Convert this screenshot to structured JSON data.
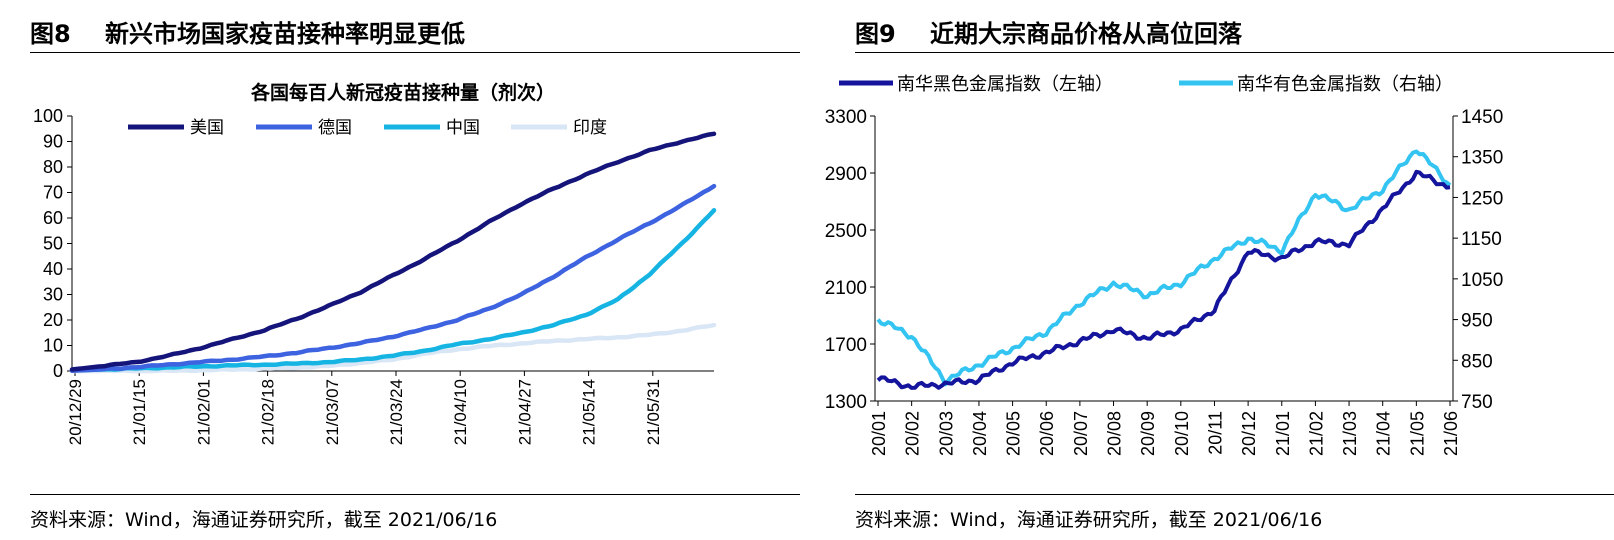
{
  "left_panel": {
    "figure_no": "图8",
    "figure_title": "新兴市场国家疫苗接种率明显更低",
    "source": "资料来源：Wind，海通证券研究所，截至 2021/06/16"
  },
  "right_panel": {
    "figure_no": "图9",
    "figure_title": "近期大宗商品价格从高位回落",
    "source": "资料来源：Wind，海通证券研究所，截至 2021/06/16"
  },
  "colors": {
    "usa": "#14147a",
    "germany": "#3e63e0",
    "china": "#16b4e3",
    "india": "#d9e6f5",
    "nh_black": "#14149c",
    "nh_nonferrous": "#33c4f2"
  },
  "chart_data": [
    {
      "type": "line",
      "title": "各国每百人新冠疫苗接种量（剂次）",
      "xlabel": "",
      "ylabel": "",
      "x_ticks": [
        "20/12/29",
        "21/01/15",
        "21/02/01",
        "21/02/18",
        "21/03/07",
        "21/03/24",
        "21/04/10",
        "21/04/27",
        "21/05/14",
        "21/05/31"
      ],
      "ylim": [
        0,
        100
      ],
      "y_ticks": [
        0,
        10,
        20,
        30,
        40,
        50,
        60,
        70,
        80,
        90,
        100
      ],
      "legend_position": "top",
      "grid": false,
      "x": [
        "20/12/29",
        "21/01/08",
        "21/01/15",
        "21/01/25",
        "21/02/01",
        "21/02/10",
        "21/02/18",
        "21/02/28",
        "21/03/07",
        "21/03/15",
        "21/03/24",
        "21/04/01",
        "21/04/10",
        "21/04/18",
        "21/04/27",
        "21/05/05",
        "21/05/14",
        "21/05/22",
        "21/05/31",
        "21/06/08",
        "21/06/16"
      ],
      "series": [
        {
          "name": "美国",
          "values": [
            0.6,
            2.0,
            3.5,
            6.0,
            9.0,
            12.5,
            16.0,
            20.5,
            25.5,
            31.0,
            37.5,
            44.0,
            51.0,
            58.5,
            65.5,
            71.5,
            77.0,
            82.0,
            86.5,
            90.0,
            93.0
          ]
        },
        {
          "name": "德国",
          "values": [
            0.1,
            0.7,
            1.5,
            2.5,
            3.5,
            4.5,
            5.7,
            7.2,
            9.0,
            11.0,
            13.5,
            16.5,
            20.0,
            24.5,
            30.0,
            37.0,
            44.5,
            51.5,
            58.0,
            65.0,
            72.5
          ]
        },
        {
          "name": "中国",
          "values": [
            0.3,
            0.6,
            1.0,
            1.4,
            1.8,
            2.2,
            2.5,
            2.9,
            3.5,
            4.5,
            6.0,
            8.0,
            10.5,
            12.5,
            15.0,
            18.0,
            22.0,
            28.0,
            38.0,
            50.0,
            63.0
          ]
        },
        {
          "name": "印度",
          "values": [
            0,
            0,
            0,
            0.1,
            0.3,
            0.6,
            0.9,
            1.3,
            2.0,
            3.2,
            4.5,
            6.8,
            8.5,
            9.8,
            10.8,
            11.8,
            12.5,
            13.2,
            14.2,
            15.8,
            18.0
          ]
        }
      ]
    },
    {
      "type": "line",
      "title": "",
      "xlabel": "",
      "ylabel_left": "",
      "ylabel_right": "",
      "legend_position": "top",
      "grid": false,
      "x_ticks": [
        "20/01",
        "20/02",
        "20/03",
        "20/04",
        "20/05",
        "20/06",
        "20/07",
        "20/08",
        "20/09",
        "20/10",
        "20/11",
        "20/12",
        "21/01",
        "21/02",
        "21/03",
        "21/04",
        "21/05",
        "21/06"
      ],
      "ylim_left": [
        1300,
        3300
      ],
      "y_ticks_left": [
        1300,
        1700,
        2100,
        2500,
        2900,
        3300
      ],
      "ylim_right": [
        750,
        1450
      ],
      "y_ticks_right": [
        750,
        850,
        950,
        1050,
        1150,
        1250,
        1350,
        1450
      ],
      "x": [
        "20/01",
        "20/02",
        "20/03",
        "20/04",
        "20/05",
        "20/06",
        "20/07",
        "20/08",
        "20/09",
        "20/10",
        "20/11",
        "20/12",
        "21/01",
        "21/02",
        "21/03",
        "21/04",
        "21/05",
        "21/06"
      ],
      "series": [
        {
          "name": "南华黑色金属指数（左轴）",
          "axis": "left",
          "values": [
            1460,
            1400,
            1420,
            1450,
            1570,
            1640,
            1720,
            1800,
            1740,
            1800,
            1940,
            2350,
            2300,
            2420,
            2400,
            2650,
            2900,
            2800
          ]
        },
        {
          "name": "南华有色金属指数（右轴）",
          "axis": "right",
          "values": [
            950,
            910,
            800,
            840,
            880,
            920,
            990,
            1040,
            1010,
            1040,
            1100,
            1150,
            1120,
            1260,
            1220,
            1270,
            1370,
            1280
          ]
        }
      ]
    }
  ]
}
